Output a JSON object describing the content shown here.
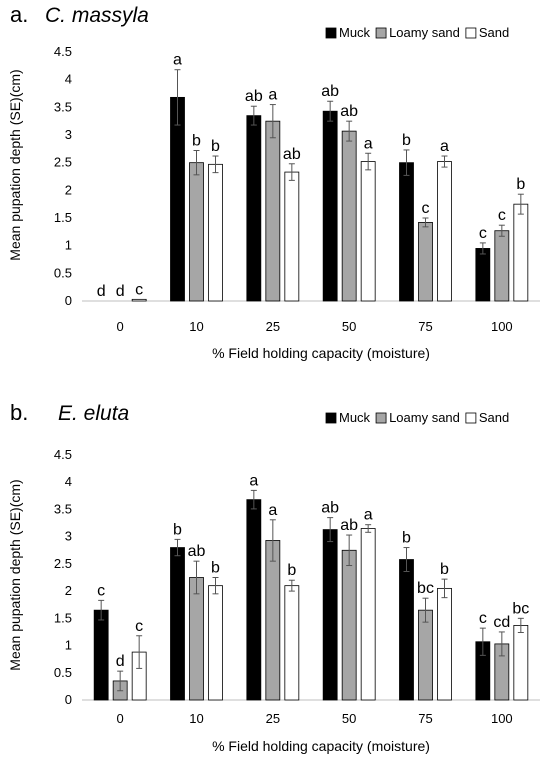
{
  "chart_data": [
    {
      "type": "bar",
      "panel": "a.",
      "title": "C. massyla",
      "xlabel": "% Field holding capacity (moisture)",
      "ylabel": "Mean pupation depth (SE)(cm)",
      "ylim": [
        0,
        4.5
      ],
      "yticks": [
        "0",
        "0.5",
        "1",
        "1.5",
        "2",
        "2.5",
        "3",
        "3.5",
        "4",
        "4.5"
      ],
      "categories": [
        "0",
        "10",
        "25",
        "50",
        "75",
        "100"
      ],
      "legend_position": "top-right",
      "series": [
        {
          "name": "Muck",
          "color": "#000000",
          "values": [
            0,
            3.68,
            3.35,
            3.43,
            2.5,
            0.95
          ],
          "errors": [
            0,
            0.5,
            0.17,
            0.18,
            0.23,
            0.1
          ],
          "labels": [
            "d",
            "a",
            "ab",
            "ab",
            "b",
            "c"
          ]
        },
        {
          "name": "Loamy sand",
          "color": "#a6a6a6",
          "values": [
            0,
            2.5,
            3.25,
            3.07,
            1.42,
            1.27
          ],
          "errors": [
            0,
            0.22,
            0.3,
            0.18,
            0.08,
            0.1
          ],
          "labels": [
            "d",
            "b",
            "a",
            "ab",
            "c",
            "c"
          ]
        },
        {
          "name": "Sand",
          "color": "#ffffff",
          "values": [
            0.03,
            2.47,
            2.33,
            2.52,
            2.52,
            1.75
          ],
          "errors": [
            0,
            0.15,
            0.15,
            0.15,
            0.1,
            0.18
          ],
          "labels": [
            "c",
            "b",
            "ab",
            "a",
            "a",
            "b"
          ]
        }
      ]
    },
    {
      "type": "bar",
      "panel": "b.",
      "title": "E. eluta",
      "xlabel": "% Field holding capacity (moisture)",
      "ylabel": "Mean pupation depth (SE)(cm)",
      "ylim": [
        0,
        4.5
      ],
      "yticks": [
        "0",
        "0.5",
        "1",
        "1.5",
        "2",
        "2.5",
        "3",
        "3.5",
        "4",
        "4.5"
      ],
      "categories": [
        "0",
        "10",
        "25",
        "50",
        "75",
        "100"
      ],
      "legend_position": "top-right",
      "series": [
        {
          "name": "Muck",
          "color": "#000000",
          "values": [
            1.65,
            2.8,
            3.68,
            3.13,
            2.58,
            1.07
          ],
          "errors": [
            0.18,
            0.15,
            0.17,
            0.22,
            0.22,
            0.25
          ],
          "labels": [
            "c",
            "b",
            "a",
            "ab",
            "b",
            "c"
          ]
        },
        {
          "name": "Loamy sand",
          "color": "#a6a6a6",
          "values": [
            0.35,
            2.25,
            2.93,
            2.75,
            1.65,
            1.03
          ],
          "errors": [
            0.18,
            0.3,
            0.38,
            0.28,
            0.22,
            0.22
          ],
          "labels": [
            "d",
            "ab",
            "a",
            "ab",
            "bc",
            "cd"
          ]
        },
        {
          "name": "Sand",
          "color": "#ffffff",
          "values": [
            0.88,
            2.1,
            2.1,
            3.15,
            2.05,
            1.37
          ],
          "errors": [
            0.3,
            0.15,
            0.1,
            0.07,
            0.17,
            0.13
          ],
          "labels": [
            "c",
            "b",
            "b",
            "a",
            "b",
            "bc"
          ]
        }
      ]
    }
  ]
}
